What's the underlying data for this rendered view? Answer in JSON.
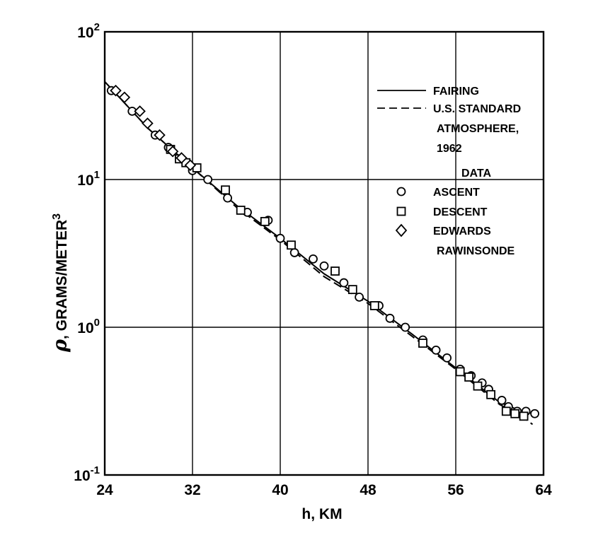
{
  "chart_data": {
    "type": "scatter",
    "title": "",
    "xlabel": "h, KM",
    "ylabel": "ρ, GRAMS/METER³",
    "ylabel_parts": {
      "symbol": "ρ",
      "text": ", GRAMS/METER",
      "superscript": "3"
    },
    "xlim": [
      24,
      64
    ],
    "ylim": [
      0.1,
      100
    ],
    "yscale": "log",
    "grid": true,
    "x_ticks": [
      "24",
      "32",
      "40",
      "48",
      "56",
      "64"
    ],
    "x_tick_values": [
      24,
      32,
      40,
      48,
      56,
      64
    ],
    "y_ticks": [
      {
        "value": 0.1,
        "base": "10",
        "exp": "-1"
      },
      {
        "value": 1,
        "base": "10",
        "exp": "0"
      },
      {
        "value": 10,
        "base": "10",
        "exp": "1"
      },
      {
        "value": 100,
        "base": "10",
        "exp": "2"
      }
    ],
    "legend": {
      "position": "top-right",
      "lines": [
        {
          "name": "FAIRING",
          "style": "solid"
        },
        {
          "name": "U.S. STANDARD",
          "continuation": [
            "ATMOSPHERE,",
            "1962"
          ],
          "style": "dashed"
        }
      ],
      "data_heading": "DATA",
      "markers": [
        {
          "name": "ASCENT",
          "marker": "circle"
        },
        {
          "name": "DESCENT",
          "marker": "square"
        },
        {
          "name": "EDWARDS",
          "continuation": [
            "RAWINSONDE"
          ],
          "marker": "diamond"
        }
      ]
    },
    "lines": [
      {
        "name": "FAIRING",
        "style": "solid",
        "x": [
          24,
          28,
          32,
          36,
          40,
          44,
          48,
          52,
          56,
          60,
          62,
          63.2
        ],
        "y": [
          46,
          22,
          12,
          6.7,
          4.0,
          2.3,
          1.5,
          0.9,
          0.53,
          0.31,
          0.27,
          0.26
        ]
      },
      {
        "name": "U.S. STANDARD ATMOSPHERE, 1962",
        "style": "dashed",
        "x": [
          24,
          28,
          32,
          36,
          40,
          44,
          48,
          52,
          56,
          60,
          62,
          63
        ],
        "y": [
          46,
          22,
          12,
          6.5,
          3.9,
          2.2,
          1.45,
          0.87,
          0.52,
          0.3,
          0.25,
          0.22
        ]
      }
    ],
    "series": [
      {
        "name": "ASCENT",
        "marker": "circle",
        "x": [
          24.6,
          26.5,
          28.6,
          29.8,
          32.0,
          33.4,
          35.2,
          37.0,
          38.9,
          40.0,
          41.3,
          43.0,
          44.0,
          45.8,
          47.2,
          49.0,
          50.0,
          51.4,
          53.0,
          54.2,
          55.2,
          56.4,
          57.4,
          58.4,
          59.0,
          60.2,
          60.8,
          61.6,
          62.4,
          63.2
        ],
        "y": [
          40,
          29,
          20,
          16.5,
          11.5,
          10.0,
          7.5,
          6.0,
          5.3,
          4.0,
          3.2,
          2.9,
          2.6,
          2.0,
          1.6,
          1.4,
          1.15,
          1.0,
          0.82,
          0.7,
          0.62,
          0.52,
          0.47,
          0.42,
          0.38,
          0.32,
          0.29,
          0.27,
          0.27,
          0.26
        ]
      },
      {
        "name": "DESCENT",
        "marker": "square",
        "x": [
          30.0,
          30.8,
          31.4,
          32.4,
          35.0,
          36.4,
          38.6,
          41.0,
          45.0,
          46.6,
          48.6,
          53.0,
          56.4,
          57.2,
          58.0,
          59.2,
          60.6,
          61.4,
          62.2
        ],
        "y": [
          16.0,
          13.8,
          13.0,
          12.0,
          8.5,
          6.2,
          5.2,
          3.6,
          2.4,
          1.8,
          1.4,
          0.78,
          0.5,
          0.46,
          0.4,
          0.35,
          0.27,
          0.26,
          0.25
        ]
      },
      {
        "name": "EDWARDS RAWINSONDE",
        "marker": "diamond",
        "x": [
          25.0,
          25.8,
          27.2,
          27.9,
          29.0,
          30.2,
          31.0,
          31.8
        ],
        "y": [
          40,
          36,
          29,
          24,
          20,
          15.5,
          14,
          12.5
        ]
      }
    ]
  }
}
